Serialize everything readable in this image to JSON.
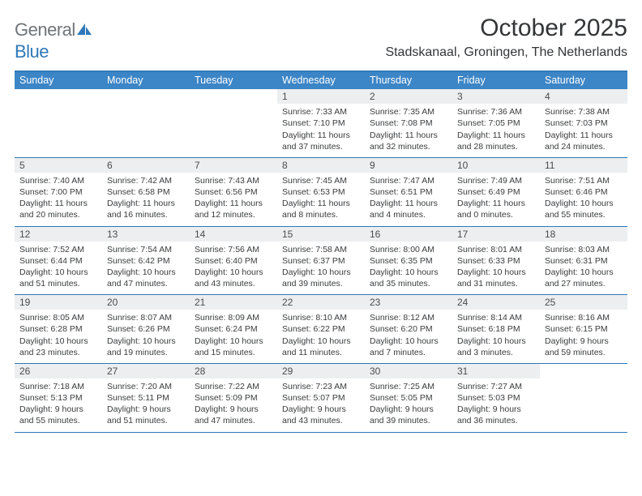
{
  "brand": {
    "part1": "General",
    "part2": "Blue"
  },
  "title": "October 2025",
  "location": "Stadskanaal, Groningen, The Netherlands",
  "colors": {
    "header_bg": "#3c85c6",
    "border": "#2f78b8",
    "daynum_bg": "#eceeef",
    "text": "#333537"
  },
  "day_names": [
    "Sunday",
    "Monday",
    "Tuesday",
    "Wednesday",
    "Thursday",
    "Friday",
    "Saturday"
  ],
  "weeks": [
    [
      null,
      null,
      null,
      {
        "n": "1",
        "sr": "7:33 AM",
        "ss": "7:10 PM",
        "dl": "11 hours and 37 minutes."
      },
      {
        "n": "2",
        "sr": "7:35 AM",
        "ss": "7:08 PM",
        "dl": "11 hours and 32 minutes."
      },
      {
        "n": "3",
        "sr": "7:36 AM",
        "ss": "7:05 PM",
        "dl": "11 hours and 28 minutes."
      },
      {
        "n": "4",
        "sr": "7:38 AM",
        "ss": "7:03 PM",
        "dl": "11 hours and 24 minutes."
      }
    ],
    [
      {
        "n": "5",
        "sr": "7:40 AM",
        "ss": "7:00 PM",
        "dl": "11 hours and 20 minutes."
      },
      {
        "n": "6",
        "sr": "7:42 AM",
        "ss": "6:58 PM",
        "dl": "11 hours and 16 minutes."
      },
      {
        "n": "7",
        "sr": "7:43 AM",
        "ss": "6:56 PM",
        "dl": "11 hours and 12 minutes."
      },
      {
        "n": "8",
        "sr": "7:45 AM",
        "ss": "6:53 PM",
        "dl": "11 hours and 8 minutes."
      },
      {
        "n": "9",
        "sr": "7:47 AM",
        "ss": "6:51 PM",
        "dl": "11 hours and 4 minutes."
      },
      {
        "n": "10",
        "sr": "7:49 AM",
        "ss": "6:49 PM",
        "dl": "11 hours and 0 minutes."
      },
      {
        "n": "11",
        "sr": "7:51 AM",
        "ss": "6:46 PM",
        "dl": "10 hours and 55 minutes."
      }
    ],
    [
      {
        "n": "12",
        "sr": "7:52 AM",
        "ss": "6:44 PM",
        "dl": "10 hours and 51 minutes."
      },
      {
        "n": "13",
        "sr": "7:54 AM",
        "ss": "6:42 PM",
        "dl": "10 hours and 47 minutes."
      },
      {
        "n": "14",
        "sr": "7:56 AM",
        "ss": "6:40 PM",
        "dl": "10 hours and 43 minutes."
      },
      {
        "n": "15",
        "sr": "7:58 AM",
        "ss": "6:37 PM",
        "dl": "10 hours and 39 minutes."
      },
      {
        "n": "16",
        "sr": "8:00 AM",
        "ss": "6:35 PM",
        "dl": "10 hours and 35 minutes."
      },
      {
        "n": "17",
        "sr": "8:01 AM",
        "ss": "6:33 PM",
        "dl": "10 hours and 31 minutes."
      },
      {
        "n": "18",
        "sr": "8:03 AM",
        "ss": "6:31 PM",
        "dl": "10 hours and 27 minutes."
      }
    ],
    [
      {
        "n": "19",
        "sr": "8:05 AM",
        "ss": "6:28 PM",
        "dl": "10 hours and 23 minutes."
      },
      {
        "n": "20",
        "sr": "8:07 AM",
        "ss": "6:26 PM",
        "dl": "10 hours and 19 minutes."
      },
      {
        "n": "21",
        "sr": "8:09 AM",
        "ss": "6:24 PM",
        "dl": "10 hours and 15 minutes."
      },
      {
        "n": "22",
        "sr": "8:10 AM",
        "ss": "6:22 PM",
        "dl": "10 hours and 11 minutes."
      },
      {
        "n": "23",
        "sr": "8:12 AM",
        "ss": "6:20 PM",
        "dl": "10 hours and 7 minutes."
      },
      {
        "n": "24",
        "sr": "8:14 AM",
        "ss": "6:18 PM",
        "dl": "10 hours and 3 minutes."
      },
      {
        "n": "25",
        "sr": "8:16 AM",
        "ss": "6:15 PM",
        "dl": "9 hours and 59 minutes."
      }
    ],
    [
      {
        "n": "26",
        "sr": "7:18 AM",
        "ss": "5:13 PM",
        "dl": "9 hours and 55 minutes."
      },
      {
        "n": "27",
        "sr": "7:20 AM",
        "ss": "5:11 PM",
        "dl": "9 hours and 51 minutes."
      },
      {
        "n": "28",
        "sr": "7:22 AM",
        "ss": "5:09 PM",
        "dl": "9 hours and 47 minutes."
      },
      {
        "n": "29",
        "sr": "7:23 AM",
        "ss": "5:07 PM",
        "dl": "9 hours and 43 minutes."
      },
      {
        "n": "30",
        "sr": "7:25 AM",
        "ss": "5:05 PM",
        "dl": "9 hours and 39 minutes."
      },
      {
        "n": "31",
        "sr": "7:27 AM",
        "ss": "5:03 PM",
        "dl": "9 hours and 36 minutes."
      },
      null
    ]
  ],
  "labels": {
    "sunrise": "Sunrise: ",
    "sunset": "Sunset: ",
    "daylight": "Daylight: "
  }
}
